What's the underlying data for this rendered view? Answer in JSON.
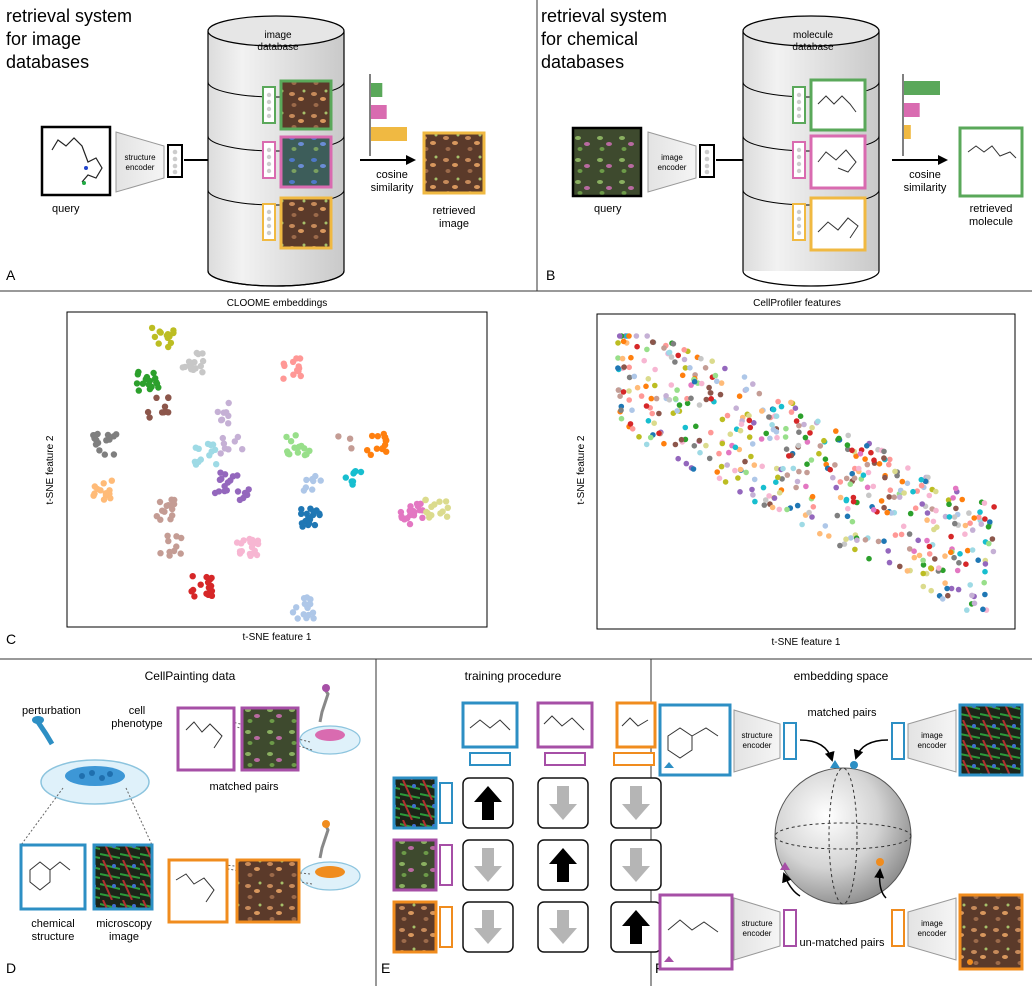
{
  "panels": {
    "A": {
      "letter": "A",
      "title": [
        "retrieval system",
        "for image",
        "databases"
      ],
      "db_label": [
        "image",
        "database"
      ],
      "query_label": "query",
      "encoder": [
        "structure",
        "encoder"
      ],
      "similarity": [
        "cosine",
        "similarity"
      ],
      "result": [
        "retrieved",
        "image"
      ],
      "similarity_values": [
        0.25,
        0.35,
        0.8
      ]
    },
    "B": {
      "letter": "B",
      "title": [
        "retrieval system",
        "for chemical",
        "databases"
      ],
      "db_label": [
        "molecule",
        "database"
      ],
      "query_label": "query",
      "encoder": [
        "image",
        "encoder"
      ],
      "similarity": [
        "cosine",
        "similarity"
      ],
      "result": [
        "retrieved",
        "molecule"
      ],
      "similarity_values": [
        0.8,
        0.35,
        0.15
      ]
    },
    "C": {
      "letter": "C",
      "left": {
        "title": "CLOOME embeddings",
        "xlabel": "t-SNE feature 1",
        "ylabel": "t-SNE feature 2"
      },
      "right": {
        "title": "CellProfiler features",
        "xlabel": "t-SNE feature 1",
        "ylabel": "t-SNE feature 2"
      }
    },
    "D": {
      "letter": "D",
      "title": "CellPainting data",
      "perturbation": "perturbation",
      "phenotype": [
        "cell",
        "phenotype"
      ],
      "chemical": [
        "chemical",
        "structure"
      ],
      "microscopy": [
        "microscopy",
        "image"
      ],
      "matched": "matched pairs"
    },
    "E": {
      "letter": "E",
      "title": "training procedure"
    },
    "F": {
      "letter": "F",
      "title": "embedding space",
      "matched": "matched pairs",
      "unmatched": "un-matched pairs",
      "structure_encoder": [
        "structure",
        "encoder"
      ],
      "image_encoder": [
        "image",
        "encoder"
      ]
    }
  },
  "colors": {
    "green": "#5aa85a",
    "pink": "#d96bb0",
    "yellow": "#f0b942",
    "blue": "#2d8fc4",
    "purple": "#a64fa6",
    "orange": "#f08c1e"
  },
  "chart_data": [
    {
      "type": "scatter",
      "title": "CLOOME embeddings",
      "xlabel": "t-SNE feature 1",
      "ylabel": "t-SNE feature 2",
      "grid": false,
      "description_of_series": "clustered",
      "clusters": [
        {
          "x": 0.23,
          "y": 0.92,
          "color": "#bcbd22",
          "n": 14
        },
        {
          "x": 0.3,
          "y": 0.84,
          "color": "#c7c7c7",
          "n": 18
        },
        {
          "x": 0.19,
          "y": 0.78,
          "color": "#2ca02c",
          "n": 16
        },
        {
          "x": 0.22,
          "y": 0.7,
          "color": "#8c564b",
          "n": 10
        },
        {
          "x": 0.09,
          "y": 0.58,
          "color": "#7f7f7f",
          "n": 16
        },
        {
          "x": 0.08,
          "y": 0.43,
          "color": "#ffbb78",
          "n": 14
        },
        {
          "x": 0.37,
          "y": 0.68,
          "color": "#c5b0d5",
          "n": 8
        },
        {
          "x": 0.33,
          "y": 0.55,
          "color": "#9edae5",
          "n": 14
        },
        {
          "x": 0.39,
          "y": 0.57,
          "color": "#c5b0d5",
          "n": 8
        },
        {
          "x": 0.38,
          "y": 0.46,
          "color": "#9467bd",
          "n": 14
        },
        {
          "x": 0.42,
          "y": 0.41,
          "color": "#9467bd",
          "n": 5
        },
        {
          "x": 0.23,
          "y": 0.37,
          "color": "#c49c94",
          "n": 14
        },
        {
          "x": 0.25,
          "y": 0.26,
          "color": "#c49c94",
          "n": 10
        },
        {
          "x": 0.43,
          "y": 0.26,
          "color": "#f7b6d2",
          "n": 18
        },
        {
          "x": 0.32,
          "y": 0.13,
          "color": "#d62728",
          "n": 16
        },
        {
          "x": 0.54,
          "y": 0.82,
          "color": "#ff9896",
          "n": 12
        },
        {
          "x": 0.55,
          "y": 0.58,
          "color": "#98df8a",
          "n": 14
        },
        {
          "x": 0.66,
          "y": 0.58,
          "color": "#c49c94",
          "n": 3
        },
        {
          "x": 0.74,
          "y": 0.58,
          "color": "#ff7f0e",
          "n": 14
        },
        {
          "x": 0.68,
          "y": 0.47,
          "color": "#17becf",
          "n": 8
        },
        {
          "x": 0.58,
          "y": 0.46,
          "color": "#aec7e8",
          "n": 8
        },
        {
          "x": 0.58,
          "y": 0.35,
          "color": "#1f77b4",
          "n": 18
        },
        {
          "x": 0.56,
          "y": 0.06,
          "color": "#aec7e8",
          "n": 16
        },
        {
          "x": 0.82,
          "y": 0.36,
          "color": "#e377c2",
          "n": 20
        },
        {
          "x": 0.88,
          "y": 0.38,
          "color": "#dbdb8d",
          "n": 14
        }
      ]
    },
    {
      "type": "scatter",
      "title": "CellProfiler features",
      "xlabel": "t-SNE feature 1",
      "ylabel": "t-SNE feature 2",
      "grid": false,
      "colors": [
        "#1f77b4",
        "#ff7f0e",
        "#2ca02c",
        "#d62728",
        "#9467bd",
        "#8c564b",
        "#e377c2",
        "#7f7f7f",
        "#bcbd22",
        "#17becf",
        "#aec7e8",
        "#ffbb78",
        "#98df8a",
        "#ff9896",
        "#c5b0d5",
        "#c49c94",
        "#f7b6d2",
        "#c7c7c7",
        "#dbdb8d",
        "#9edae5"
      ],
      "n_points": 480
    }
  ]
}
